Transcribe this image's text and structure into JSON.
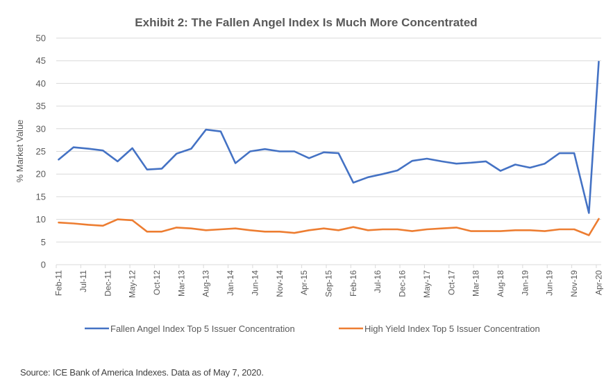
{
  "chart_data": {
    "type": "line",
    "title": "Exhibit 2: The Fallen Angel Index Is Much More Concentrated",
    "xlabel": "",
    "ylabel": "% Market Value",
    "ylim": [
      0,
      50
    ],
    "yticks": [
      0,
      5,
      10,
      15,
      20,
      25,
      30,
      35,
      40,
      45,
      50
    ],
    "grid": true,
    "legend_position": "bottom",
    "x_start": "Feb-11",
    "x_end": "Apr-20",
    "x_tick_labels": [
      "Feb-11",
      "Jul-11",
      "Dec-11",
      "May-12",
      "Oct-12",
      "Mar-13",
      "Aug-13",
      "Jan-14",
      "Jun-14",
      "Nov-14",
      "Apr-15",
      "Sep-15",
      "Feb-16",
      "Jul-16",
      "Dec-16",
      "May-17",
      "Oct-17",
      "Mar-18",
      "Aug-18",
      "Jan-19",
      "Jun-19",
      "Nov-19",
      "Apr-20"
    ],
    "x": [
      "Feb-11",
      "May-11",
      "Aug-11",
      "Nov-11",
      "Feb-12",
      "May-12",
      "Aug-12",
      "Nov-12",
      "Feb-13",
      "May-13",
      "Aug-13",
      "Nov-13",
      "Feb-14",
      "May-14",
      "Aug-14",
      "Nov-14",
      "Feb-15",
      "May-15",
      "Aug-15",
      "Nov-15",
      "Feb-16",
      "May-16",
      "Aug-16",
      "Nov-16",
      "Feb-17",
      "May-17",
      "Aug-17",
      "Nov-17",
      "Feb-18",
      "May-18",
      "Aug-18",
      "Nov-18",
      "Feb-19",
      "May-19",
      "Aug-19",
      "Nov-19",
      "Feb-20",
      "Apr-20"
    ],
    "series": [
      {
        "name": "Fallen Angel Index Top 5 Issuer Concentration",
        "color": "#4472C4",
        "values": [
          23.2,
          25.9,
          25.6,
          25.2,
          22.8,
          25.7,
          21.0,
          21.2,
          24.5,
          25.6,
          29.8,
          29.4,
          22.4,
          25.0,
          25.5,
          25.0,
          25.0,
          23.5,
          24.8,
          24.6,
          18.1,
          19.3,
          20.0,
          20.8,
          22.9,
          23.4,
          22.8,
          22.3,
          22.5,
          22.8,
          20.7,
          22.1,
          21.4,
          22.3,
          24.6,
          24.6,
          11.4,
          44.8
        ]
      },
      {
        "name": "High Yield Index Top 5 Issuer Concentration",
        "color": "#ED7D31",
        "values": [
          9.3,
          9.1,
          8.8,
          8.6,
          10.0,
          9.8,
          7.3,
          7.3,
          8.2,
          8.0,
          7.6,
          7.8,
          8.0,
          7.6,
          7.3,
          7.3,
          7.0,
          7.6,
          8.0,
          7.6,
          8.3,
          7.6,
          7.8,
          7.8,
          7.4,
          7.8,
          8.0,
          8.2,
          7.4,
          7.4,
          7.4,
          7.6,
          7.6,
          7.4,
          7.8,
          7.8,
          6.5,
          10.1
        ]
      }
    ]
  },
  "source_note": "Source: ICE Bank of America  Indexes. Data as of May 7, 2020."
}
